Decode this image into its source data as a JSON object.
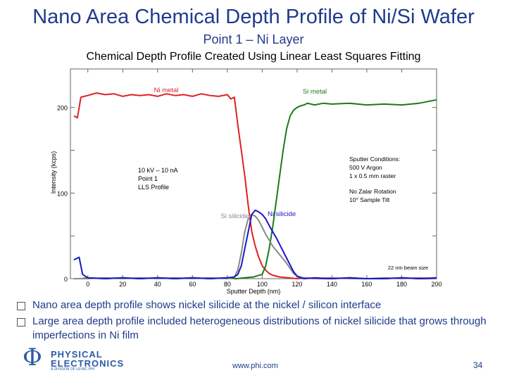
{
  "slide": {
    "title": "Nano Area Chemical Depth Profile of Ni/Si Wafer",
    "subtitle": "Point 1 – Ni Layer",
    "bullets": [
      "Nano area depth profile shows nickel silicide at the nickel / silicon interface",
      "Large area depth profile included heterogeneous distributions of nickel silicide that grows through imperfections in Ni film"
    ],
    "footer_url": "www.phi.com",
    "page_number": "34",
    "logo": {
      "line1": "PHYSICAL",
      "line2": "ELECTRONICS",
      "line3": "A DIVISION OF ULVAC-PHI"
    }
  },
  "chart_data": {
    "type": "line",
    "title": "Chemical Depth Profile Created Using Linear Least Squares Fitting",
    "xlabel": "Sputter Depth (nm)",
    "ylabel": "Intensity (kcps)",
    "xlim": [
      -10,
      200
    ],
    "ylim": [
      0,
      245
    ],
    "xticks": [
      0,
      20,
      40,
      60,
      80,
      100,
      120,
      140,
      160,
      180,
      200
    ],
    "yticks": [
      0,
      100,
      200
    ],
    "grid": false,
    "colors": {
      "Ni metal": "#dd2222",
      "Si metal": "#1a7a1a",
      "Si silicide": "#888888",
      "Ni silicide": "#1818c8"
    },
    "series": [
      {
        "name": "Ni metal",
        "x": [
          -8,
          -6,
          -4,
          -2,
          0,
          5,
          10,
          15,
          20,
          25,
          30,
          35,
          40,
          45,
          50,
          55,
          60,
          65,
          70,
          75,
          80,
          82,
          84,
          86,
          88,
          90,
          92,
          94,
          96,
          98,
          100,
          102,
          104,
          106,
          110,
          115,
          120,
          125,
          130,
          140,
          150,
          160,
          170,
          180,
          190,
          200
        ],
        "y": [
          190,
          188,
          212,
          213,
          214,
          217,
          215,
          216,
          213,
          215,
          214,
          215,
          213,
          216,
          214,
          215,
          213,
          216,
          214,
          213,
          215,
          210,
          212,
          180,
          150,
          120,
          85,
          55,
          38,
          25,
          15,
          10,
          6,
          4,
          2,
          1,
          0,
          1,
          0,
          0,
          1,
          0,
          0,
          1,
          0,
          0
        ]
      },
      {
        "name": "Si metal",
        "x": [
          -8,
          -4,
          0,
          10,
          20,
          30,
          40,
          50,
          60,
          70,
          80,
          85,
          90,
          95,
          100,
          102,
          104,
          106,
          108,
          110,
          112,
          114,
          116,
          118,
          120,
          122,
          124,
          126,
          130,
          135,
          140,
          150,
          160,
          170,
          180,
          190,
          200
        ],
        "y": [
          0,
          0,
          1,
          0,
          1,
          0,
          1,
          0,
          1,
          0,
          1,
          0,
          1,
          2,
          5,
          15,
          35,
          60,
          90,
          120,
          150,
          175,
          190,
          197,
          200,
          202,
          203,
          205,
          203,
          205,
          204,
          205,
          203,
          204,
          203,
          205,
          209
        ]
      },
      {
        "name": "Si silicide",
        "x": [
          -8,
          0,
          10,
          20,
          30,
          40,
          50,
          60,
          70,
          80,
          84,
          86,
          88,
          90,
          92,
          94,
          96,
          98,
          100,
          102,
          104,
          106,
          108,
          110,
          112,
          114,
          116,
          118,
          120,
          124,
          130,
          140,
          150,
          160,
          170,
          180,
          190,
          200
        ],
        "y": [
          0,
          0,
          1,
          0,
          1,
          0,
          1,
          0,
          1,
          0,
          2,
          10,
          30,
          55,
          70,
          75,
          73,
          68,
          60,
          52,
          45,
          38,
          33,
          28,
          23,
          18,
          12,
          6,
          3,
          1,
          0,
          1,
          0,
          0,
          1,
          0,
          1,
          0
        ]
      },
      {
        "name": "Ni silicide",
        "x": [
          -8,
          -5,
          -3,
          0,
          10,
          20,
          30,
          40,
          50,
          60,
          70,
          80,
          84,
          86,
          88,
          90,
          92,
          94,
          96,
          98,
          100,
          102,
          104,
          106,
          108,
          110,
          112,
          114,
          116,
          118,
          120,
          122,
          124,
          130,
          140,
          150,
          160,
          170,
          180,
          190,
          200
        ],
        "y": [
          22,
          25,
          5,
          1,
          0,
          1,
          0,
          1,
          0,
          1,
          0,
          1,
          2,
          5,
          15,
          35,
          55,
          75,
          80,
          78,
          75,
          70,
          62,
          55,
          48,
          40,
          32,
          24,
          16,
          8,
          3,
          1,
          0,
          1,
          0,
          1,
          0,
          0,
          1,
          0,
          1
        ]
      }
    ],
    "series_labels": [
      "Ni metal",
      "Si metal",
      "Si silicide",
      "Ni silicide"
    ],
    "annotations": {
      "conditions": [
        "10 kV – 10 nA",
        "Point 1",
        "LLS Profile"
      ],
      "sputter": [
        "Sputter Conditions:",
        "500 V Argon",
        "1 x 0.5 mm raster"
      ],
      "zalar": [
        "No Zalar Rotation",
        "10° Sample Tilt"
      ],
      "beam": "22 nm beam size"
    }
  }
}
